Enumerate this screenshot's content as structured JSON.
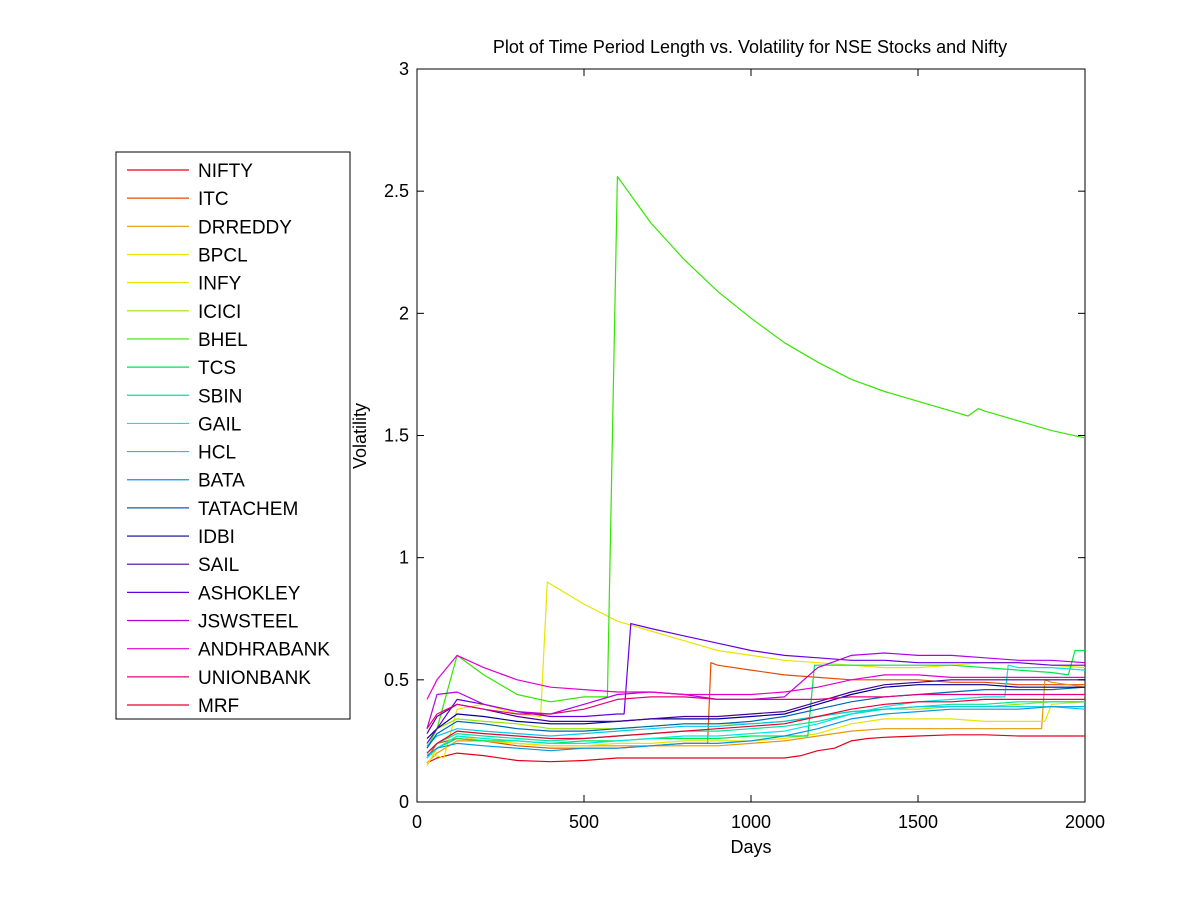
{
  "chart_data": {
    "type": "line",
    "title": "Plot of Time Period Length vs. Volatility for NSE Stocks and Nifty",
    "xlabel": "Days",
    "ylabel": "Volatility",
    "xlim": [
      0,
      2000
    ],
    "ylim": [
      0,
      3
    ],
    "xticks": [
      0,
      500,
      1000,
      1500,
      2000
    ],
    "yticks": [
      0,
      0.5,
      1,
      1.5,
      2,
      2.5,
      3
    ],
    "xtick_labels": [
      "0",
      "500",
      "1000",
      "1500",
      "2000"
    ],
    "ytick_labels": [
      "0",
      "0.5",
      "1",
      "1.5",
      "2",
      "2.5",
      "3"
    ],
    "grid": false,
    "legend_position": "outside-left",
    "series": [
      {
        "name": "NIFTY",
        "color": "#e6001a",
        "x": [
          30,
          60,
          120,
          200,
          300,
          400,
          500,
          600,
          700,
          800,
          900,
          1000,
          1100,
          1150,
          1200,
          1250,
          1300,
          1350,
          1400,
          1500,
          1600,
          1700,
          1800,
          1900,
          2000
        ],
        "y": [
          0.16,
          0.18,
          0.2,
          0.19,
          0.17,
          0.165,
          0.17,
          0.18,
          0.18,
          0.18,
          0.18,
          0.18,
          0.18,
          0.19,
          0.21,
          0.22,
          0.25,
          0.26,
          0.265,
          0.27,
          0.275,
          0.275,
          0.27,
          0.27,
          0.27
        ]
      },
      {
        "name": "ITC",
        "color": "#e64c00",
        "x": [
          30,
          60,
          120,
          200,
          300,
          400,
          500,
          600,
          700,
          800,
          870,
          880,
          900,
          1000,
          1100,
          1200,
          1300,
          1400,
          1500,
          1600,
          1700,
          1800,
          1900,
          2000
        ],
        "y": [
          0.18,
          0.24,
          0.26,
          0.25,
          0.23,
          0.22,
          0.22,
          0.22,
          0.23,
          0.24,
          0.24,
          0.57,
          0.56,
          0.54,
          0.52,
          0.51,
          0.5,
          0.5,
          0.5,
          0.49,
          0.49,
          0.48,
          0.48,
          0.48
        ]
      },
      {
        "name": "DRREDDY",
        "color": "#e69900",
        "x": [
          30,
          60,
          120,
          200,
          300,
          400,
          500,
          600,
          700,
          800,
          900,
          1000,
          1100,
          1200,
          1300,
          1400,
          1500,
          1600,
          1700,
          1800,
          1850,
          1870,
          1880,
          1900,
          1950,
          2000
        ],
        "y": [
          0.16,
          0.2,
          0.25,
          0.25,
          0.24,
          0.23,
          0.23,
          0.23,
          0.23,
          0.23,
          0.23,
          0.24,
          0.25,
          0.27,
          0.29,
          0.3,
          0.3,
          0.3,
          0.3,
          0.3,
          0.3,
          0.3,
          0.5,
          0.49,
          0.48,
          0.47
        ]
      },
      {
        "name": "BPCL",
        "color": "#e6e600",
        "x": [
          30,
          60,
          120,
          200,
          300,
          400,
          500,
          600,
          700,
          800,
          900,
          1000,
          1100,
          1200,
          1300,
          1400,
          1500,
          1600,
          1700,
          1800,
          1880,
          1900,
          2000
        ],
        "y": [
          0.15,
          0.22,
          0.27,
          0.25,
          0.24,
          0.23,
          0.23,
          0.24,
          0.24,
          0.25,
          0.25,
          0.25,
          0.26,
          0.28,
          0.32,
          0.34,
          0.34,
          0.34,
          0.33,
          0.33,
          0.33,
          0.4,
          0.41
        ]
      },
      {
        "name": "INFY",
        "color": "#e6e600",
        "x": [
          30,
          80,
          120,
          200,
          300,
          370,
          390,
          500,
          600,
          700,
          800,
          900,
          1000,
          1100,
          1200,
          1300,
          1400,
          1500,
          1600,
          1700,
          1800,
          1900,
          2000
        ],
        "y": [
          0.2,
          0.18,
          0.38,
          0.4,
          0.36,
          0.35,
          0.9,
          0.81,
          0.74,
          0.7,
          0.66,
          0.62,
          0.6,
          0.58,
          0.57,
          0.56,
          0.55,
          0.55,
          0.56,
          0.57,
          0.57,
          0.56,
          0.55
        ]
      },
      {
        "name": "ICICI",
        "color": "#99e600",
        "x": [
          30,
          60,
          120,
          200,
          300,
          400,
          500,
          600,
          700,
          800,
          900,
          1000,
          1100,
          1200,
          1300,
          1400,
          1500,
          1600,
          1700,
          1800,
          1900,
          2000
        ],
        "y": [
          0.26,
          0.3,
          0.34,
          0.33,
          0.32,
          0.3,
          0.3,
          0.3,
          0.31,
          0.32,
          0.32,
          0.32,
          0.33,
          0.35,
          0.37,
          0.38,
          0.38,
          0.39,
          0.39,
          0.4,
          0.41,
          0.41
        ]
      },
      {
        "name": "BHEL",
        "color": "#33e600",
        "x": [
          30,
          60,
          120,
          200,
          300,
          400,
          500,
          560,
          570,
          600,
          700,
          800,
          900,
          1000,
          1100,
          1200,
          1300,
          1400,
          1500,
          1600,
          1650,
          1680,
          1700,
          1800,
          1900,
          2000
        ],
        "y": [
          0.22,
          0.3,
          0.6,
          0.52,
          0.44,
          0.41,
          0.43,
          0.43,
          0.43,
          2.56,
          2.37,
          2.22,
          2.09,
          1.98,
          1.88,
          1.8,
          1.73,
          1.68,
          1.64,
          1.6,
          1.58,
          1.61,
          1.6,
          1.56,
          1.52,
          1.49
        ]
      },
      {
        "name": "TCS",
        "color": "#00e64c",
        "x": [
          30,
          60,
          120,
          200,
          300,
          400,
          500,
          600,
          700,
          800,
          900,
          1000,
          1100,
          1170,
          1190,
          1200,
          1300,
          1400,
          1500,
          1600,
          1700,
          1800,
          1900,
          1950,
          1970,
          2000
        ],
        "y": [
          0.18,
          0.22,
          0.26,
          0.25,
          0.25,
          0.24,
          0.25,
          0.25,
          0.26,
          0.26,
          0.26,
          0.27,
          0.27,
          0.27,
          0.56,
          0.56,
          0.56,
          0.56,
          0.56,
          0.56,
          0.55,
          0.54,
          0.53,
          0.52,
          0.62,
          0.62
        ]
      },
      {
        "name": "SBIN",
        "color": "#00e699",
        "x": [
          30,
          60,
          120,
          200,
          300,
          400,
          500,
          600,
          700,
          800,
          900,
          1000,
          1100,
          1200,
          1300,
          1400,
          1500,
          1600,
          1700,
          1800,
          1900,
          2000
        ],
        "y": [
          0.2,
          0.24,
          0.28,
          0.27,
          0.26,
          0.25,
          0.26,
          0.27,
          0.28,
          0.29,
          0.29,
          0.3,
          0.31,
          0.33,
          0.36,
          0.38,
          0.39,
          0.4,
          0.4,
          0.41,
          0.41,
          0.41
        ]
      },
      {
        "name": "GAIL",
        "color": "#00e6e6",
        "x": [
          30,
          60,
          120,
          200,
          300,
          400,
          500,
          600,
          700,
          800,
          900,
          1000,
          1100,
          1200,
          1300,
          1400,
          1500,
          1600,
          1700,
          1760,
          1770,
          1800,
          1900,
          2000
        ],
        "y": [
          0.18,
          0.22,
          0.27,
          0.26,
          0.25,
          0.24,
          0.24,
          0.25,
          0.26,
          0.27,
          0.27,
          0.28,
          0.29,
          0.32,
          0.36,
          0.39,
          0.41,
          0.42,
          0.43,
          0.43,
          0.56,
          0.55,
          0.55,
          0.54
        ]
      },
      {
        "name": "HCL",
        "color": "#00cce6",
        "x": [
          30,
          60,
          120,
          200,
          300,
          400,
          500,
          600,
          700,
          800,
          900,
          1000,
          1100,
          1200,
          1300,
          1400,
          1500,
          1600,
          1700,
          1800,
          1900,
          2000
        ],
        "y": [
          0.23,
          0.27,
          0.3,
          0.29,
          0.28,
          0.27,
          0.28,
          0.29,
          0.3,
          0.31,
          0.31,
          0.32,
          0.33,
          0.35,
          0.37,
          0.38,
          0.39,
          0.39,
          0.39,
          0.39,
          0.39,
          0.38
        ]
      },
      {
        "name": "BATA",
        "color": "#0099e6",
        "x": [
          30,
          60,
          120,
          200,
          300,
          400,
          500,
          600,
          700,
          800,
          900,
          1000,
          1100,
          1200,
          1300,
          1400,
          1500,
          1600,
          1700,
          1800,
          1900,
          2000
        ],
        "y": [
          0.19,
          0.22,
          0.24,
          0.23,
          0.22,
          0.21,
          0.22,
          0.22,
          0.23,
          0.24,
          0.24,
          0.25,
          0.27,
          0.3,
          0.34,
          0.36,
          0.37,
          0.38,
          0.38,
          0.38,
          0.39,
          0.39
        ]
      },
      {
        "name": "TATACHEM",
        "color": "#0066b3",
        "x": [
          30,
          60,
          120,
          200,
          300,
          400,
          500,
          600,
          700,
          800,
          900,
          1000,
          1100,
          1200,
          1300,
          1400,
          1500,
          1600,
          1700,
          1800,
          1900,
          2000
        ],
        "y": [
          0.22,
          0.28,
          0.33,
          0.32,
          0.3,
          0.29,
          0.29,
          0.3,
          0.31,
          0.32,
          0.32,
          0.33,
          0.35,
          0.38,
          0.41,
          0.43,
          0.44,
          0.45,
          0.46,
          0.46,
          0.46,
          0.47
        ]
      },
      {
        "name": "IDBI",
        "color": "#000099",
        "x": [
          30,
          60,
          120,
          200,
          300,
          400,
          500,
          600,
          700,
          800,
          900,
          1000,
          1100,
          1200,
          1300,
          1400,
          1500,
          1600,
          1700,
          1800,
          1900,
          2000
        ],
        "y": [
          0.26,
          0.3,
          0.36,
          0.35,
          0.33,
          0.32,
          0.32,
          0.33,
          0.34,
          0.34,
          0.34,
          0.35,
          0.36,
          0.4,
          0.44,
          0.47,
          0.48,
          0.48,
          0.48,
          0.47,
          0.47,
          0.47
        ]
      },
      {
        "name": "SAIL",
        "color": "#4c0099",
        "x": [
          30,
          60,
          120,
          200,
          300,
          400,
          500,
          600,
          700,
          800,
          900,
          1000,
          1100,
          1200,
          1300,
          1400,
          1500,
          1600,
          1700,
          1800,
          1900,
          2000
        ],
        "y": [
          0.28,
          0.35,
          0.4,
          0.38,
          0.35,
          0.33,
          0.33,
          0.33,
          0.34,
          0.35,
          0.35,
          0.36,
          0.37,
          0.41,
          0.45,
          0.48,
          0.49,
          0.5,
          0.5,
          0.5,
          0.5,
          0.5
        ]
      },
      {
        "name": "ASHOKLEY",
        "color": "#6600e6",
        "x": [
          30,
          60,
          120,
          200,
          300,
          400,
          500,
          600,
          620,
          640,
          700,
          800,
          900,
          1000,
          1100,
          1200,
          1300,
          1400,
          1500,
          1600,
          1700,
          1800,
          1900,
          2000
        ],
        "y": [
          0.24,
          0.3,
          0.42,
          0.4,
          0.37,
          0.35,
          0.35,
          0.36,
          0.36,
          0.73,
          0.71,
          0.68,
          0.65,
          0.62,
          0.6,
          0.59,
          0.58,
          0.58,
          0.57,
          0.57,
          0.57,
          0.57,
          0.56,
          0.56
        ]
      },
      {
        "name": "JSWSTEEL",
        "color": "#b300e6",
        "x": [
          30,
          60,
          120,
          200,
          300,
          400,
          500,
          600,
          700,
          800,
          900,
          1000,
          1100,
          1200,
          1300,
          1400,
          1500,
          1600,
          1700,
          1800,
          1900,
          2000
        ],
        "y": [
          0.3,
          0.44,
          0.45,
          0.4,
          0.37,
          0.36,
          0.4,
          0.44,
          0.45,
          0.44,
          0.42,
          0.42,
          0.43,
          0.55,
          0.6,
          0.61,
          0.6,
          0.6,
          0.59,
          0.58,
          0.58,
          0.57
        ]
      },
      {
        "name": "ANDHRABANK",
        "color": "#e600cc",
        "x": [
          30,
          60,
          120,
          200,
          300,
          400,
          500,
          600,
          700,
          800,
          900,
          1000,
          1100,
          1200,
          1300,
          1400,
          1500,
          1600,
          1700,
          1800,
          1900,
          2000
        ],
        "y": [
          0.42,
          0.5,
          0.6,
          0.55,
          0.5,
          0.47,
          0.46,
          0.45,
          0.45,
          0.44,
          0.44,
          0.44,
          0.45,
          0.47,
          0.5,
          0.52,
          0.52,
          0.51,
          0.51,
          0.51,
          0.51,
          0.51
        ]
      },
      {
        "name": "UNIONBANK",
        "color": "#e6007a",
        "x": [
          30,
          60,
          120,
          200,
          300,
          400,
          500,
          600,
          700,
          800,
          900,
          1000,
          1100,
          1200,
          1300,
          1400,
          1500,
          1600,
          1700,
          1800,
          1900,
          2000
        ],
        "y": [
          0.3,
          0.36,
          0.4,
          0.38,
          0.36,
          0.36,
          0.38,
          0.42,
          0.43,
          0.43,
          0.42,
          0.42,
          0.42,
          0.42,
          0.43,
          0.43,
          0.44,
          0.44,
          0.44,
          0.44,
          0.44,
          0.44
        ]
      },
      {
        "name": "MRF",
        "color": "#e60033",
        "x": [
          30,
          60,
          120,
          200,
          300,
          400,
          500,
          600,
          700,
          800,
          900,
          1000,
          1100,
          1200,
          1300,
          1400,
          1500,
          1600,
          1700,
          1800,
          1900,
          2000
        ],
        "y": [
          0.2,
          0.24,
          0.29,
          0.28,
          0.27,
          0.26,
          0.26,
          0.27,
          0.28,
          0.29,
          0.3,
          0.31,
          0.32,
          0.35,
          0.38,
          0.4,
          0.41,
          0.41,
          0.42,
          0.42,
          0.42,
          0.42
        ]
      }
    ]
  }
}
